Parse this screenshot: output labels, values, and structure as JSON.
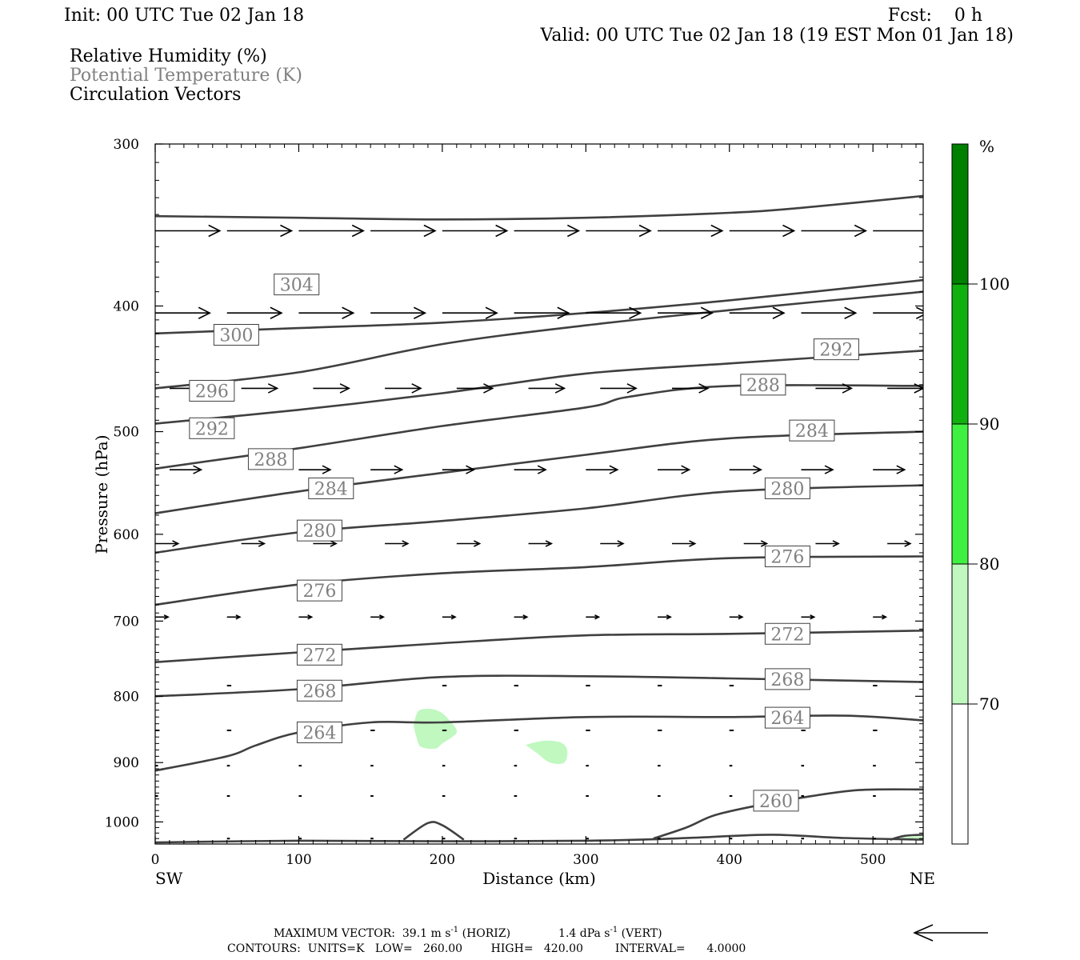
{
  "header": {
    "init": "Init: 00 UTC Tue 02 Jan 18",
    "fcst": "Fcst:    0 h",
    "valid": "Valid: 00 UTC Tue 02 Jan 18 (19 EST Mon 01 Jan 18)"
  },
  "legend": {
    "rh": "Relative Humidity (%)",
    "theta": "Potential Temperature (K)",
    "vectors": "Circulation Vectors"
  },
  "colors": {
    "contour": "#404040",
    "vector": "#000000",
    "theta_label": "#808080",
    "rh_70": "#c0f8c0",
    "rh_80": "#40f040",
    "rh_90": "#10b010",
    "rh_100": "#008000"
  },
  "chart_data": {
    "type": "contour",
    "title": "",
    "xlabel": "Distance (km)",
    "ylabel": "Pressure (hPa)",
    "xlim": [
      0,
      535
    ],
    "ylim": [
      1040,
      300
    ],
    "y_scale": "log",
    "x_ticks": [
      "0",
      "100",
      "200",
      "300",
      "400",
      "500"
    ],
    "y_ticks": [
      "300",
      "400",
      "500",
      "600",
      "700",
      "800",
      "900",
      "1000"
    ],
    "x_end_labels": {
      "left": "SW",
      "right": "NE"
    },
    "colorbar": {
      "unit": "%",
      "levels": [
        "70",
        "80",
        "90",
        "100"
      ]
    },
    "theta_contours": [
      {
        "k": 304,
        "pts": [
          [
            0,
            341
          ],
          [
            100,
            342
          ],
          [
            200,
            343
          ],
          [
            300,
            342
          ],
          [
            400,
            339
          ],
          [
            450,
            336
          ],
          [
            535,
            329
          ]
        ],
        "label": [
          84,
          385
        ]
      },
      {
        "k": 300,
        "pts": [
          [
            0,
            420
          ],
          [
            100,
            416
          ],
          [
            200,
            412
          ],
          [
            300,
            405
          ],
          [
            400,
            396
          ],
          [
            535,
            382
          ]
        ],
        "label": [
          42,
          421
        ]
      },
      {
        "k": 296,
        "pts": [
          [
            0,
            463
          ],
          [
            100,
            450
          ],
          [
            200,
            428
          ],
          [
            300,
            414
          ],
          [
            400,
            403
          ],
          [
            535,
            390
          ]
        ],
        "label": [
          25,
          465
        ]
      },
      {
        "k": 292,
        "pts": [
          [
            0,
            493
          ],
          [
            100,
            481
          ],
          [
            200,
            467
          ],
          [
            300,
            451
          ],
          [
            400,
            443
          ],
          [
            535,
            433
          ]
        ],
        "label": [
          25,
          497
        ],
        "label2": [
          460,
          432
        ]
      },
      {
        "k": 288,
        "pts": [
          [
            0,
            534
          ],
          [
            100,
            515
          ],
          [
            200,
            495
          ],
          [
            300,
            479
          ],
          [
            330,
            470
          ],
          [
            400,
            461
          ],
          [
            535,
            461
          ]
        ],
        "label": [
          66,
          525
        ],
        "label2": [
          409,
          460
        ]
      },
      {
        "k": 284,
        "pts": [
          [
            0,
            578
          ],
          [
            100,
            556
          ],
          [
            200,
            538
          ],
          [
            300,
            521
          ],
          [
            400,
            506
          ],
          [
            535,
            500
          ]
        ],
        "label": [
          108,
          553
        ],
        "label2": [
          443,
          499
        ]
      },
      {
        "k": 280,
        "pts": [
          [
            0,
            620
          ],
          [
            100,
            598
          ],
          [
            200,
            586
          ],
          [
            300,
            573
          ],
          [
            400,
            556
          ],
          [
            535,
            550
          ]
        ],
        "label": [
          100,
          596
        ],
        "label2": [
          426,
          553
        ]
      },
      {
        "k": 276,
        "pts": [
          [
            0,
            680
          ],
          [
            100,
            656
          ],
          [
            200,
            643
          ],
          [
            300,
            636
          ],
          [
            400,
            626
          ],
          [
            535,
            624
          ]
        ],
        "label": [
          100,
          663
        ],
        "label2": [
          426,
          624
        ]
      },
      {
        "k": 272,
        "pts": [
          [
            0,
            753
          ],
          [
            100,
            740
          ],
          [
            200,
            728
          ],
          [
            300,
            718
          ],
          [
            400,
            716
          ],
          [
            535,
            712
          ]
        ],
        "label": [
          100,
          743
        ],
        "label2": [
          426,
          716
        ]
      },
      {
        "k": 268,
        "pts": [
          [
            0,
            800
          ],
          [
            100,
            790
          ],
          [
            200,
            773
          ],
          [
            300,
            772
          ],
          [
            400,
            775
          ],
          [
            535,
            780
          ]
        ],
        "label": [
          100,
          792
        ],
        "label2": [
          426,
          776
        ]
      },
      {
        "k": 264,
        "pts": [
          [
            0,
            913
          ],
          [
            50,
            890
          ],
          [
            70,
            873
          ],
          [
            100,
            853
          ],
          [
            150,
            838
          ],
          [
            200,
            838
          ],
          [
            300,
            830
          ],
          [
            400,
            830
          ],
          [
            480,
            828
          ],
          [
            535,
            835
          ]
        ],
        "label": [
          100,
          853
        ],
        "label2": [
          426,
          831
        ]
      }
    ],
    "theta_260_curves": [
      {
        "pts": [
          [
            0,
            1037
          ],
          [
            100,
            1034
          ],
          [
            200,
            1035
          ],
          [
            300,
            1034
          ],
          [
            350,
            1031
          ],
          [
            380,
            1028
          ],
          [
            430,
            1023
          ],
          [
            480,
            1029
          ],
          [
            535,
            1032
          ]
        ]
      },
      {
        "pts": [
          [
            173,
            1032
          ],
          [
            190,
            1002
          ],
          [
            200,
            1006
          ],
          [
            215,
            1032
          ]
        ]
      },
      {
        "pts": [
          [
            347,
            1030
          ],
          [
            370,
            1010
          ],
          [
            390,
            988
          ],
          [
            420,
            971
          ],
          [
            450,
            958
          ],
          [
            490,
            945
          ],
          [
            535,
            944
          ]
        ],
        "label": [
          418,
          963
        ]
      },
      {
        "pts": [
          [
            512,
            1032
          ],
          [
            522,
            1025
          ],
          [
            535,
            1023
          ]
        ]
      }
    ],
    "rh_patches": [
      {
        "level": 70,
        "pts": [
          [
            180,
            843
          ],
          [
            183,
            822
          ],
          [
            190,
            818
          ],
          [
            198,
            822
          ],
          [
            205,
            835
          ],
          [
            210,
            853
          ],
          [
            200,
            870
          ],
          [
            195,
            878
          ],
          [
            185,
            875
          ],
          [
            182,
            860
          ]
        ]
      },
      {
        "level": 70,
        "pts": [
          [
            258,
            872
          ],
          [
            270,
            866
          ],
          [
            282,
            868
          ],
          [
            287,
            880
          ],
          [
            285,
            900
          ],
          [
            275,
            900
          ],
          [
            266,
            885
          ]
        ]
      },
      {
        "level": 70,
        "pts": [
          [
            520,
            1028
          ],
          [
            535,
            1026
          ],
          [
            535,
            1032
          ],
          [
            522,
            1032
          ]
        ]
      }
    ],
    "vector_rows": [
      {
        "p": 350,
        "len_km": 45,
        "xs": [
          0,
          50,
          100,
          150,
          200,
          250,
          300,
          350,
          400,
          450,
          500
        ]
      },
      {
        "p": 405,
        "len_km": 38,
        "xs": [
          0,
          50,
          100,
          150,
          200,
          250,
          300,
          350,
          400,
          450,
          500,
          535
        ]
      },
      {
        "p": 463,
        "len_km": 25,
        "xs": [
          10,
          60,
          110,
          160,
          210,
          260,
          310,
          360,
          410,
          460,
          510
        ]
      },
      {
        "p": 535,
        "len_km": 22,
        "xs": [
          10,
          100,
          150,
          200,
          250,
          300,
          350,
          400,
          450,
          500
        ]
      },
      {
        "p": 610,
        "len_km": 16,
        "xs": [
          0,
          60,
          110,
          160,
          210,
          260,
          310,
          360,
          410,
          460,
          510
        ]
      },
      {
        "p": 695,
        "len_km": 9,
        "xs": [
          0,
          50,
          100,
          150,
          200,
          250,
          300,
          350,
          400,
          450,
          500
        ]
      },
      {
        "p": 785,
        "len_km": 3,
        "xs": [
          50,
          200,
          250,
          300,
          350,
          400,
          450,
          500
        ]
      },
      {
        "p": 850,
        "len_km": 3,
        "xs": [
          0,
          50,
          150,
          200,
          250,
          300,
          350,
          400,
          450,
          500
        ]
      },
      {
        "p": 905,
        "len_km": 2,
        "xs": [
          0,
          50,
          100,
          150,
          200,
          250,
          300,
          350,
          400,
          450,
          500
        ]
      },
      {
        "p": 955,
        "len_km": 2,
        "xs": [
          0,
          50,
          100,
          150,
          200,
          250,
          300,
          350,
          400,
          450,
          500
        ]
      },
      {
        "p": 1030,
        "len_km": 2,
        "xs": [
          50,
          100,
          150,
          200,
          250,
          300,
          350,
          400,
          450,
          500
        ]
      }
    ]
  },
  "footer": {
    "max_vector": "MAXIMUM VECTOR:  39.1 m s",
    "max_vector_exp": "-1",
    "max_vector_horiz": " (HORIZ)",
    "max_vector_vert_val": "1.4 dPa s",
    "max_vector_vert_exp": "-1",
    "max_vector_vert": " (VERT)",
    "contours": "CONTOURS:  UNITS=K   LOW=   260.00        HIGH=   420.00         INTERVAL=      4.0000"
  }
}
